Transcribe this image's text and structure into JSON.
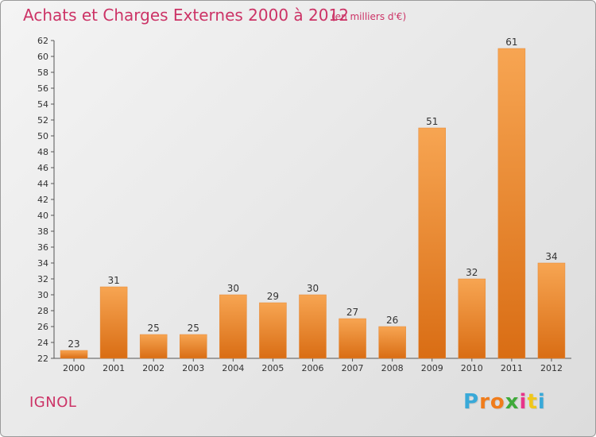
{
  "header": {
    "title": "Achats et Charges Externes 2000 à 2012",
    "unit": "(en milliers d'€)"
  },
  "footer": {
    "commune": "IGNOL",
    "logo_letters": [
      "P",
      "r",
      "o",
      "x",
      "i",
      "t",
      "i"
    ],
    "logo_colors": [
      "#39a9d8",
      "#f07c1b",
      "#f07c1b",
      "#3faa3a",
      "#e8348a",
      "#f0c71b",
      "#39a9d8"
    ]
  },
  "chart_data": {
    "type": "bar",
    "title": "Achats et Charges Externes 2000 à 2012",
    "xlabel": "",
    "ylabel": "",
    "categories": [
      "2000",
      "2001",
      "2002",
      "2003",
      "2004",
      "2005",
      "2006",
      "2007",
      "2008",
      "2009",
      "2010",
      "2011",
      "2012"
    ],
    "values": [
      23,
      31,
      25,
      25,
      30,
      29,
      30,
      27,
      26,
      51,
      32,
      61,
      34
    ],
    "ylim": [
      22,
      62
    ],
    "yticks": [
      22,
      24,
      26,
      28,
      30,
      32,
      34,
      36,
      38,
      40,
      42,
      44,
      46,
      48,
      50,
      52,
      54,
      56,
      58,
      60,
      62
    ],
    "grid": false,
    "bar_color": "#f08a2c",
    "text_color": "#333333"
  }
}
